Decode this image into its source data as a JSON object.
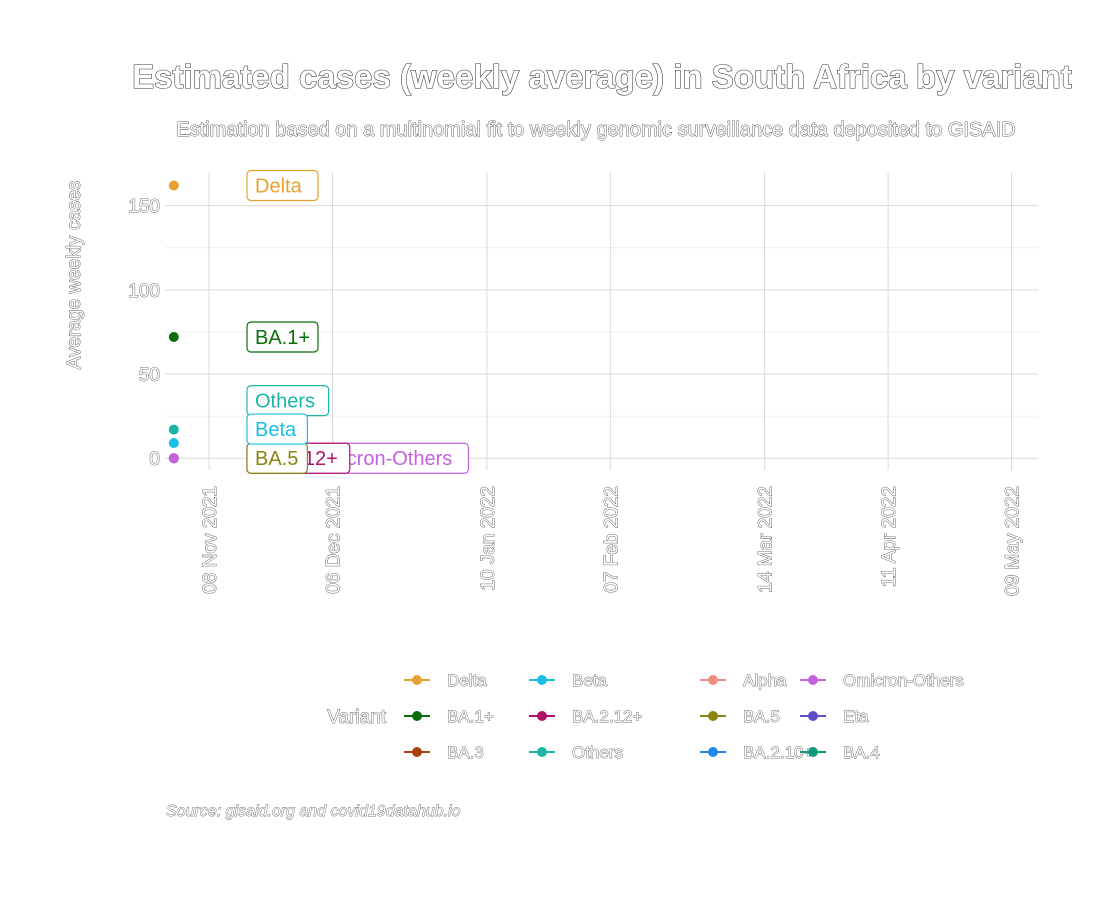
{
  "chart_data": {
    "type": "scatter",
    "title": "Estimated cases (weekly average) in South Africa by variant",
    "subtitle": "Estimation based on a multinomial fit to weekly genomic surveillance data deposited to GISAID",
    "xlabel": "",
    "ylabel": "Average weekly cases",
    "caption": "Source: gisaid.org and covid19datahub.io",
    "x_ticks": [
      "08 Nov 2021",
      "06 Dec 2021",
      "10 Jan 2022",
      "07 Feb 2022",
      "14 Mar 2022",
      "11 Apr 2022",
      "09 May 2022"
    ],
    "xlim": [
      "2021-10-29",
      "2022-05-15"
    ],
    "y_ticks": [
      "0",
      "50",
      "100",
      "150"
    ],
    "ylim": [
      -7,
      170
    ],
    "grid": true,
    "legend_title": "Variant",
    "legend_position": "bottom",
    "legend": [
      {
        "name": "Delta",
        "color": "#E8A12E"
      },
      {
        "name": "BA.1+",
        "color": "#0B6E0B"
      },
      {
        "name": "BA.3",
        "color": "#A9420E"
      },
      {
        "name": "Beta",
        "color": "#19BFE8"
      },
      {
        "name": "BA.2.12+",
        "color": "#B0126A"
      },
      {
        "name": "Others",
        "color": "#1BB5A8"
      },
      {
        "name": "Alpha",
        "color": "#F08C82"
      },
      {
        "name": "BA.5",
        "color": "#888510"
      },
      {
        "name": "BA.2.10+",
        "color": "#1E88E5"
      },
      {
        "name": "Omicron-Others",
        "color": "#C462DE"
      },
      {
        "name": "Eta",
        "color": "#5B4FCC"
      },
      {
        "name": "BA.4",
        "color": "#0E9B7A"
      }
    ],
    "series": [
      {
        "name": "Delta",
        "color": "#E8A12E",
        "x": "2021-10-31",
        "y": 162,
        "label": "Delta"
      },
      {
        "name": "BA.1+",
        "color": "#0B6E0B",
        "x": "2021-10-31",
        "y": 72,
        "label": "BA.1+"
      },
      {
        "name": "Others",
        "color": "#1BB5A8",
        "x": "2021-10-31",
        "y": 17,
        "label": "Others"
      },
      {
        "name": "Beta",
        "color": "#19BFE8",
        "x": "2021-10-31",
        "y": 9,
        "label": "Beta"
      },
      {
        "name": "BA.5",
        "color": "#888510",
        "x": "2021-10-31",
        "y": 0,
        "label": "BA.5"
      },
      {
        "name": "BA.2.12+",
        "color": "#B0126A",
        "x": "2021-10-31",
        "y": 0,
        "label": "BA.2.12+"
      },
      {
        "name": "Omicron-Others",
        "color": "#C462DE",
        "x": "2021-10-31",
        "y": 0,
        "label": "Omicron-Others"
      }
    ]
  }
}
